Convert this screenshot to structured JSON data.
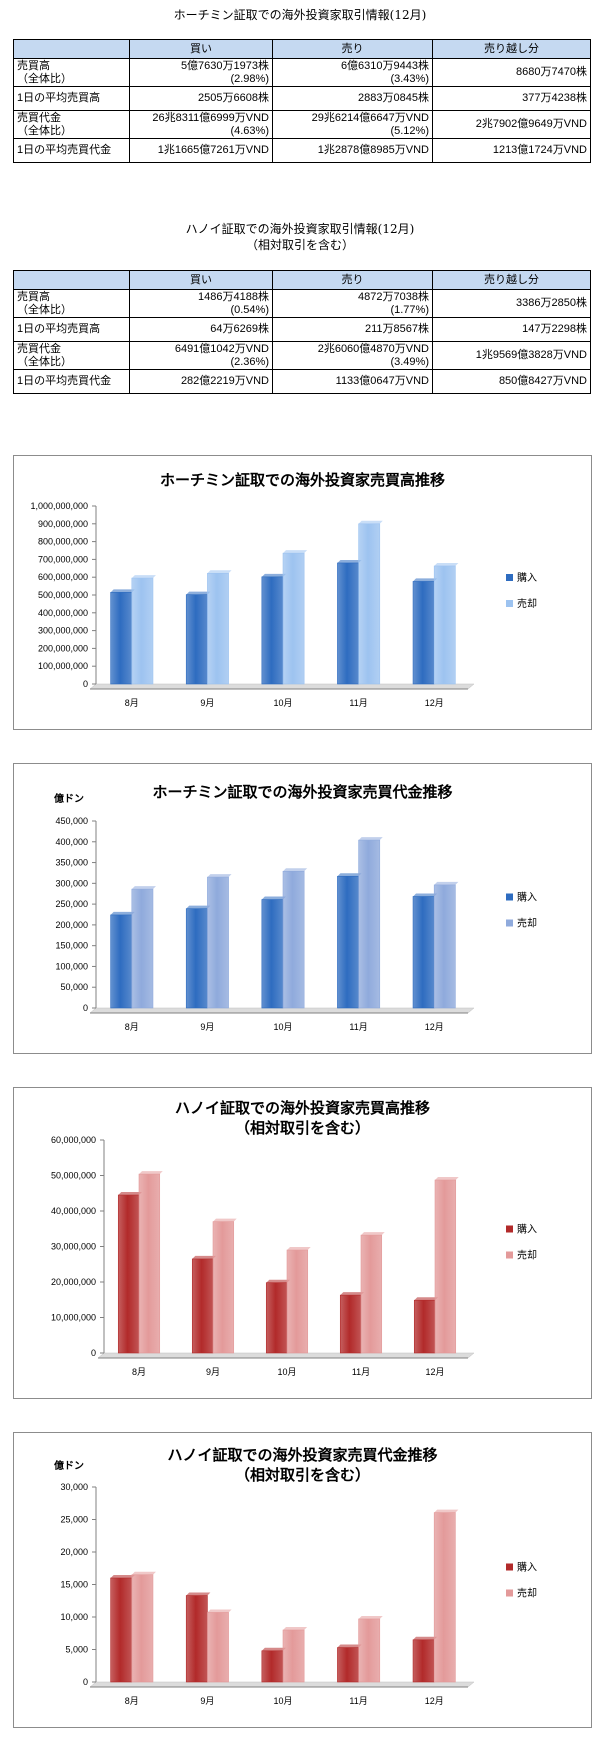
{
  "hcm_table": {
    "title": "ホーチミン証取での海外投資家取引情報(12月)",
    "headers": [
      "",
      "買い",
      "売り",
      "売り越し分"
    ],
    "rows": [
      {
        "label1": "売買高",
        "label2": "（全体比）",
        "buy1": "5億7630万1973株",
        "buy2": "(2.98%)",
        "sell1": "6億6310万9443株",
        "sell2": "(3.43%)",
        "net": "8680万7470株"
      },
      {
        "label1": "1日の平均売買高",
        "label2": "",
        "buy1": "2505万6608株",
        "buy2": "",
        "sell1": "2883万0845株",
        "sell2": "",
        "net": "377万4238株"
      },
      {
        "label1": "売買代金",
        "label2": "（全体比）",
        "buy1": "26兆8311億6999万VND",
        "buy2": "(4.63%)",
        "sell1": "29兆6214億6647万VND",
        "sell2": "(5.12%)",
        "net": "2兆7902億9649万VND"
      },
      {
        "label1": "1日の平均売買代金",
        "label2": "",
        "buy1": "1兆1665億7261万VND",
        "buy2": "",
        "sell1": "1兆2878億8985万VND",
        "sell2": "",
        "net": "1213億1724万VND"
      }
    ]
  },
  "hanoi_table": {
    "title": "ハノイ証取での海外投資家取引情報(12月)",
    "subtitle": "（相対取引を含む）",
    "headers": [
      "",
      "買い",
      "売り",
      "売り越し分"
    ],
    "rows": [
      {
        "label1": "売買高",
        "label2": "（全体比）",
        "buy1": "1486万4188株",
        "buy2": "(0.54%)",
        "sell1": "4872万7038株",
        "sell2": "(1.77%)",
        "net": "3386万2850株"
      },
      {
        "label1": "1日の平均売買高",
        "label2": "",
        "buy1": "64万6269株",
        "buy2": "",
        "sell1": "211万8567株",
        "sell2": "",
        "net": "147万2298株"
      },
      {
        "label1": "売買代金",
        "label2": "（全体比）",
        "buy1": "6491億1042万VND",
        "buy2": "(2.36%)",
        "sell1": "2兆6060億4870万VND",
        "sell2": "(3.49%)",
        "net": "1兆9569億3828万VND"
      },
      {
        "label1": "1日の平均売買代金",
        "label2": "",
        "buy1": "282億2219万VND",
        "buy2": "",
        "sell1": "1133億0647万VND",
        "sell2": "",
        "net": "850億8427万VND"
      }
    ]
  },
  "colors": {
    "header_bg": "#c5d9f1",
    "blue_buy": "#2e6cc0",
    "blue_sell": "#9dc3f0",
    "blue_sell_value": "#8faadc",
    "red_buy": "#b22a2a",
    "red_sell": "#e39a9a"
  },
  "chart_data": [
    {
      "type": "bar",
      "title": "ホーチミン証取での海外投資家売買高推移",
      "unit": "",
      "categories": [
        "8月",
        "9月",
        "10月",
        "11月",
        "12月"
      ],
      "series": [
        {
          "name": "購入",
          "values": [
            515000000,
            502000000,
            602000000,
            680000000,
            576301973
          ]
        },
        {
          "name": "売却",
          "values": [
            595000000,
            622000000,
            735000000,
            900000000,
            663109443
          ]
        }
      ],
      "ylim": [
        0,
        1000000000
      ],
      "yticks": [
        "0",
        "100,000,000",
        "200,000,000",
        "300,000,000",
        "400,000,000",
        "500,000,000",
        "600,000,000",
        "700,000,000",
        "800,000,000",
        "900,000,000",
        "1,000,000,000"
      ],
      "legend": "right",
      "palette": "blue"
    },
    {
      "type": "bar",
      "title": "ホーチミン証取での海外投資家売買代金推移",
      "unit": "億ドン",
      "categories": [
        "8月",
        "9月",
        "10月",
        "11月",
        "12月"
      ],
      "series": [
        {
          "name": "購入",
          "values": [
            224000,
            239000,
            261000,
            317000,
            268312
          ]
        },
        {
          "name": "売却",
          "values": [
            286000,
            315000,
            329000,
            404000,
            296215
          ]
        }
      ],
      "ylim": [
        0,
        450000
      ],
      "yticks": [
        "0",
        "50,000",
        "100,000",
        "150,000",
        "200,000",
        "250,000",
        "300,000",
        "350,000",
        "400,000",
        "450,000"
      ],
      "legend": "right",
      "palette": "blue2"
    },
    {
      "type": "bar",
      "title": "ハノイ証取での海外投資家売買高推移",
      "subtitle": "（相対取引を含む）",
      "unit": "",
      "categories": [
        "8月",
        "9月",
        "10月",
        "11月",
        "12月"
      ],
      "series": [
        {
          "name": "購入",
          "values": [
            44500000,
            26500000,
            19800000,
            16300000,
            14864188
          ]
        },
        {
          "name": "売却",
          "values": [
            50400000,
            37000000,
            29000000,
            33200000,
            48727038
          ]
        }
      ],
      "ylim": [
        0,
        60000000
      ],
      "yticks": [
        "0",
        "10,000,000",
        "20,000,000",
        "30,000,000",
        "40,000,000",
        "50,000,000",
        "60,000,000"
      ],
      "legend": "right",
      "palette": "red"
    },
    {
      "type": "bar",
      "title": "ハノイ証取での海外投資家売買代金推移",
      "subtitle": "（相対取引を含む）",
      "unit": "億ドン",
      "categories": [
        "8月",
        "9月",
        "10月",
        "11月",
        "12月"
      ],
      "series": [
        {
          "name": "購入",
          "values": [
            16000,
            13300,
            4800,
            5300,
            6491
          ]
        },
        {
          "name": "売却",
          "values": [
            16500,
            10700,
            8000,
            9700,
            26060
          ]
        }
      ],
      "ylim": [
        0,
        30000
      ],
      "yticks": [
        "0",
        "5,000",
        "10,000",
        "15,000",
        "20,000",
        "25,000",
        "30,000"
      ],
      "legend": "right",
      "palette": "red"
    }
  ]
}
